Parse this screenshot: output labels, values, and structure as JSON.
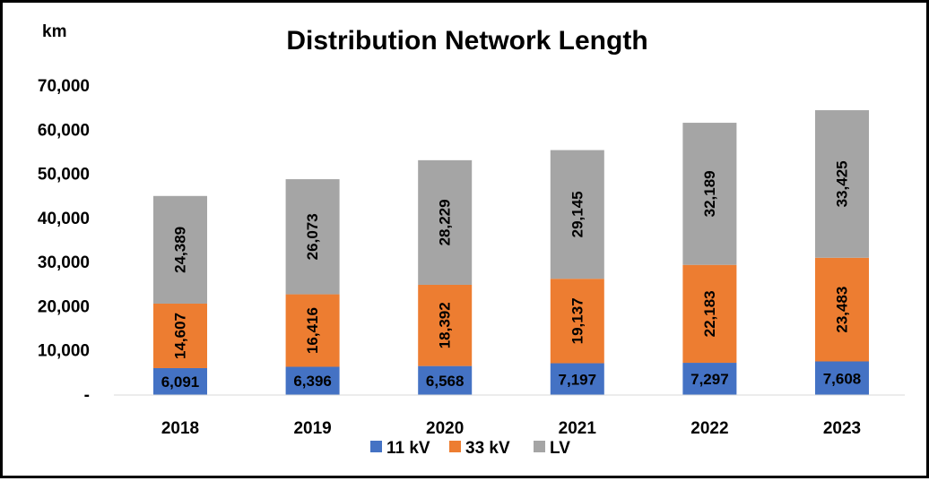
{
  "chart_data": {
    "type": "bar",
    "stacked": true,
    "title": "Distribution Network Length",
    "unit_label": "km",
    "categories": [
      "2018",
      "2019",
      "2020",
      "2021",
      "2022",
      "2023"
    ],
    "series": [
      {
        "name": "11 kV",
        "color": "#4472C4",
        "values": [
          6091,
          6396,
          6568,
          7197,
          7297,
          7608
        ],
        "labels": [
          "6,091",
          "6,396",
          "6,568",
          "7,197",
          "7,297",
          "7,608"
        ]
      },
      {
        "name": "33 kV",
        "color": "#ED7D31",
        "values": [
          14607,
          16416,
          18392,
          19137,
          22183,
          23483
        ],
        "labels": [
          "14,607",
          "16,416",
          "18,392",
          "19,137",
          "22,183",
          "23,483"
        ]
      },
      {
        "name": "LV",
        "color": "#A5A5A5",
        "values": [
          24389,
          26073,
          28229,
          29145,
          32189,
          33425
        ],
        "labels": [
          "24,389",
          "26,073",
          "28,229",
          "29,145",
          "32,189",
          "33,425"
        ]
      }
    ],
    "y_ticks": [
      0,
      10000,
      20000,
      30000,
      40000,
      50000,
      60000,
      70000
    ],
    "y_tick_labels": [
      "-",
      "10,000",
      "20,000",
      "30,000",
      "40,000",
      "50,000",
      "60,000",
      "70,000"
    ],
    "ylim": [
      0,
      70000
    ],
    "grid": false,
    "legend_position": "bottom"
  }
}
